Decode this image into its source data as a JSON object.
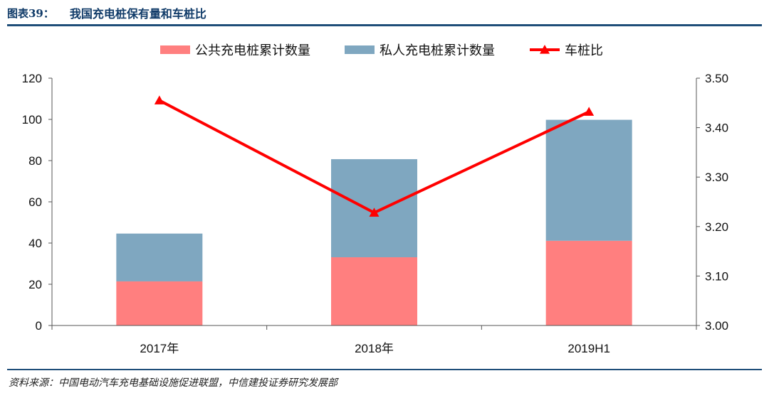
{
  "header": {
    "figure_number": "图表39：",
    "title": "我国充电桩保有量和车桩比"
  },
  "source": "资料来源：中国电动汽车充电基础设施促进联盟，中信建投证券研究发展部",
  "chart_data": {
    "type": "bar",
    "stacked": true,
    "categories": [
      "2017年",
      "2018年",
      "2019H1"
    ],
    "series": [
      {
        "name": "公共充电桩累计数量",
        "type": "bar",
        "axis": "left",
        "color": "#ff7f7f",
        "values": [
          21.4,
          33.1,
          41.1
        ]
      },
      {
        "name": "私人充电桩累计数量",
        "type": "bar",
        "axis": "left",
        "color": "#7fa7c0",
        "values": [
          23.2,
          47.6,
          58.7
        ]
      },
      {
        "name": "车桩比",
        "type": "line",
        "axis": "right",
        "color": "#ff0000",
        "marker": "triangle",
        "values": [
          3.455,
          3.228,
          3.432
        ]
      }
    ],
    "y_left": {
      "min": 0,
      "max": 120,
      "ticks": [
        0,
        20,
        40,
        60,
        80,
        100,
        120
      ]
    },
    "y_right": {
      "min": 3.0,
      "max": 3.5,
      "ticks": [
        "3.00",
        "3.10",
        "3.20",
        "3.30",
        "3.40",
        "3.50"
      ]
    },
    "legend_position": "top-center",
    "grid": false
  }
}
